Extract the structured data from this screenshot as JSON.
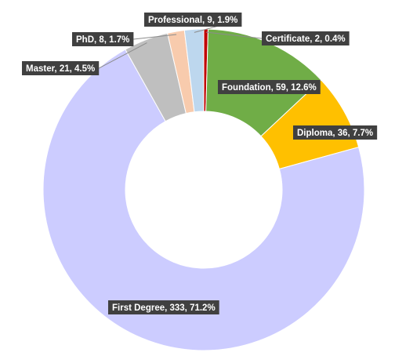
{
  "chart_data": {
    "type": "pie",
    "variant": "doughnut",
    "title": "",
    "legend": "none",
    "series": [
      {
        "name": "",
        "slices": [
          {
            "label": "Certificate",
            "value": 2,
            "percent": "0.4%",
            "color": "#C00000",
            "display": "Certificate, 2, 0.4%"
          },
          {
            "label": "Foundation",
            "value": 59,
            "percent": "12.6%",
            "color": "#70AD47",
            "display": "Foundation, 59, 12.6%"
          },
          {
            "label": "Diploma",
            "value": 36,
            "percent": "7.7%",
            "color": "#FFC000",
            "display": "Diploma, 36, 7.7%"
          },
          {
            "label": "First Degree",
            "value": 333,
            "percent": "71.2%",
            "color": "#CCCCFF",
            "display": "First Degree, 333, 71.2%"
          },
          {
            "label": "Master",
            "value": 21,
            "percent": "4.5%",
            "color": "#BFBFBF",
            "display": "Master, 21, 4.5%"
          },
          {
            "label": "PhD",
            "value": 8,
            "percent": "1.7%",
            "color": "#F8CBAD",
            "display": "PhD, 8, 1.7%"
          },
          {
            "label": "Professional",
            "value": 9,
            "percent": "1.9%",
            "color": "#BDD7EE",
            "display": "Professional, 9, 1.9%"
          }
        ]
      }
    ]
  }
}
